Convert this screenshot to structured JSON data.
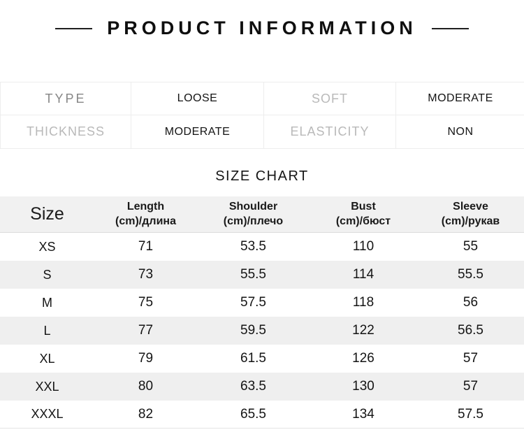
{
  "page": {
    "background": "#ffffff"
  },
  "header": {
    "title": "PRODUCT INFORMATION"
  },
  "attribute_table": {
    "cells": [
      [
        "TYPE",
        "LOOSE",
        "SOFT",
        "MODERATE"
      ],
      [
        "THICKNESS",
        "MODERATE",
        "ELASTICITY",
        "NON"
      ]
    ]
  },
  "size_chart": {
    "title": "SIZE CHART",
    "columns": [
      {
        "line1": "Size",
        "line2": ""
      },
      {
        "line1": "Length",
        "line2": "(cm)/длина"
      },
      {
        "line1": "Shoulder",
        "line2": "(cm)/плечо"
      },
      {
        "line1": "Bust",
        "line2": "(cm)/бюст"
      },
      {
        "line1": "Sleeve",
        "line2": "(cm)/рукав"
      }
    ],
    "rows": [
      [
        "XS",
        "71",
        "53.5",
        "110",
        "55"
      ],
      [
        "S",
        "73",
        "55.5",
        "114",
        "55.5"
      ],
      [
        "M",
        "75",
        "57.5",
        "118",
        "56"
      ],
      [
        "L",
        "77",
        "59.5",
        "122",
        "56.5"
      ],
      [
        "XL",
        "79",
        "61.5",
        "126",
        "57"
      ],
      [
        "XXL",
        "80",
        "63.5",
        "130",
        "57"
      ],
      [
        "XXXL",
        "82",
        "65.5",
        "134",
        "57.5"
      ]
    ]
  },
  "colors": {
    "stripe": "#efefef",
    "header_bg": "#f1f1f1",
    "border": "#ededed",
    "label_dark": "#868686",
    "label_light": "#b9b9b9",
    "text": "#141414"
  }
}
